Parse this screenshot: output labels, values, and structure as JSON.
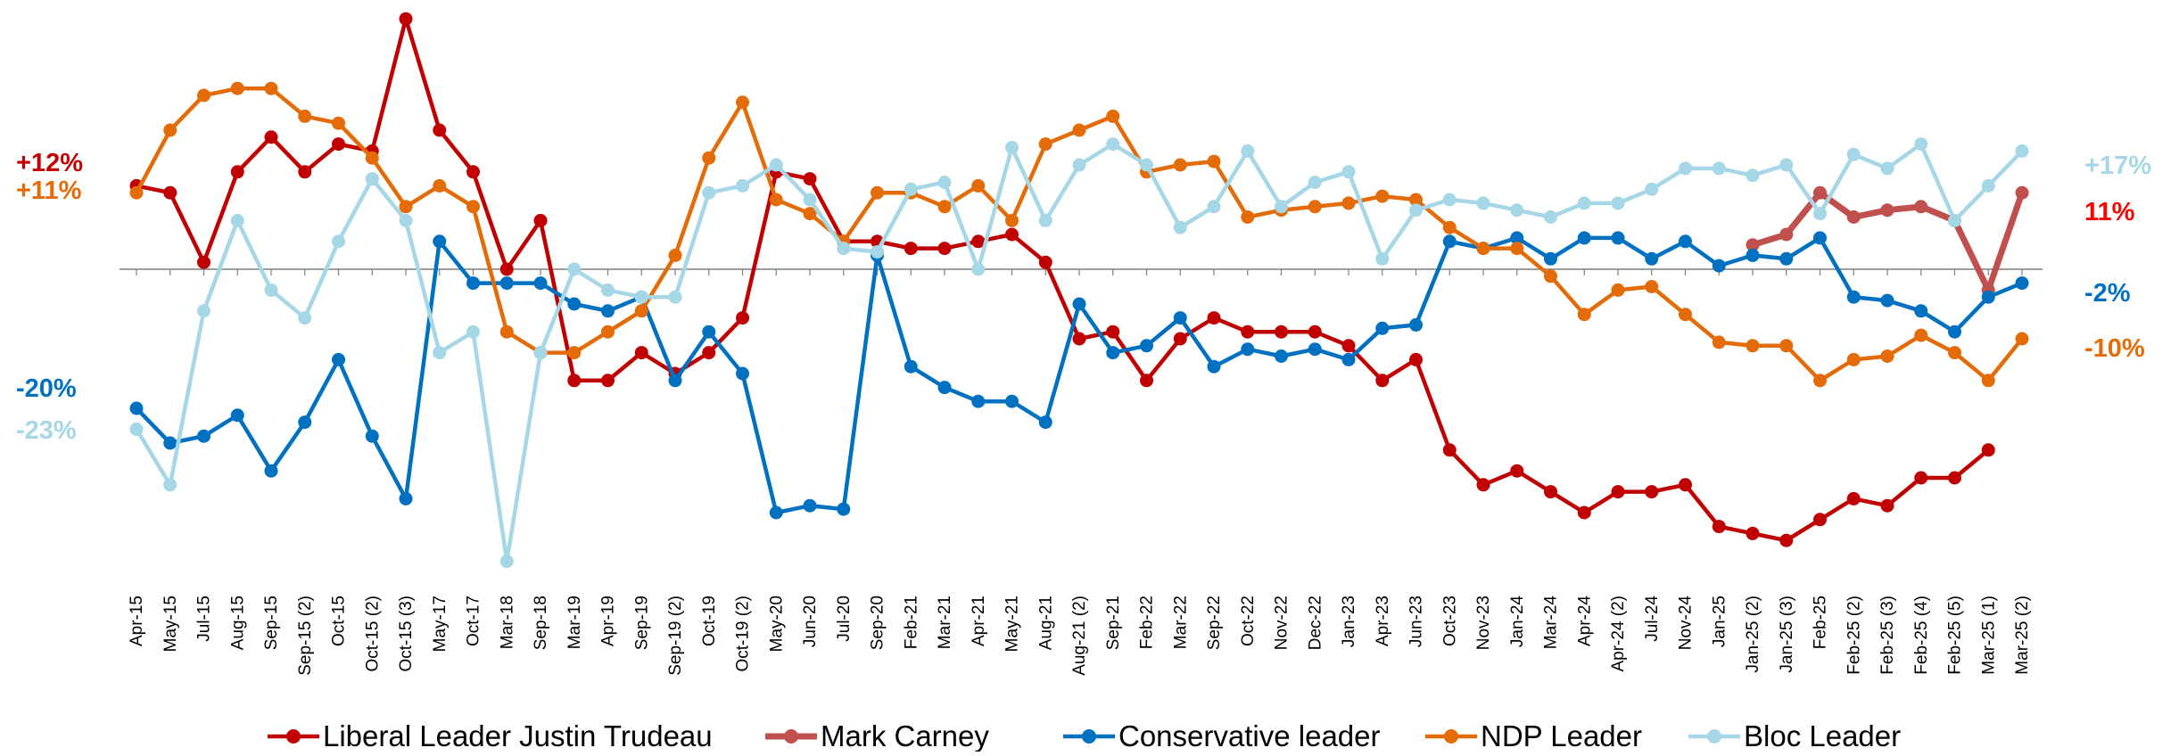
{
  "chart_data": {
    "type": "line",
    "title": "",
    "xlabel": "",
    "ylabel": "",
    "ylim": [
      -40,
      30
    ],
    "grid": false,
    "legend_position": "bottom",
    "categories": [
      "Apr-15",
      "May-15",
      "Jul-15",
      "Aug-15",
      "Sep-15",
      "Sep-15 (2)",
      "Oct-15",
      "Oct-15 (2)",
      "Oct-15 (3)",
      "May-17",
      "Oct-17",
      "Mar-18",
      "Sep-18",
      "Mar-19",
      "Apr-19",
      "Sep-19",
      "Sep-19 (2)",
      "Oct-19",
      "Oct-19 (2)",
      "May-20",
      "Jun-20",
      "Jul-20",
      "Sep-20",
      "Feb-21",
      "Mar-21",
      "Apr-21",
      "May-21",
      "Aug-21",
      "Aug-21 (2)",
      "Sep-21",
      "Feb-22",
      "Mar-22",
      "Sep-22",
      "Oct-22",
      "Nov-22",
      "Dec-22",
      "Jan-23",
      "Apr-23",
      "Jun-23",
      "Oct-23",
      "Nov-23",
      "Jan-24",
      "Mar-24",
      "Apr-24",
      "Apr-24 (2)",
      "Jul-24",
      "Nov-24",
      "Jan-25",
      "Jan-25 (2)",
      "Jan-25 (3)",
      "Feb-25",
      "Feb-25 (2)",
      "Feb-25 (3)",
      "Feb-25 (4)",
      "Feb-25 (5)",
      "Mar-25 (1)",
      "Mar-25 (2)"
    ],
    "series": [
      {
        "name": "Liberal Leader Justin Trudeau",
        "color": "#c00000",
        "values": [
          12,
          11,
          1,
          14,
          19,
          14,
          18,
          17,
          36,
          20,
          14,
          0,
          7,
          -16,
          -16,
          -12,
          -15,
          -12,
          -7,
          14,
          13,
          4,
          4,
          3,
          3,
          4,
          5,
          1,
          -10,
          -9,
          -16,
          -10,
          -7,
          -9,
          -9,
          -9,
          -11,
          -16,
          -13,
          -26,
          -31,
          -29,
          -32,
          -35,
          -32,
          -32,
          -31,
          -37,
          -38,
          -39,
          -36,
          -33,
          -34,
          -30,
          -30,
          -26,
          null
        ]
      },
      {
        "name": "Mark Carney",
        "color": "#c0504d",
        "values": [
          null,
          null,
          null,
          null,
          null,
          null,
          null,
          null,
          null,
          null,
          null,
          null,
          null,
          null,
          null,
          null,
          null,
          null,
          null,
          null,
          null,
          null,
          null,
          null,
          null,
          null,
          null,
          null,
          null,
          null,
          null,
          null,
          null,
          null,
          null,
          null,
          null,
          null,
          null,
          null,
          null,
          null,
          null,
          null,
          null,
          null,
          null,
          null,
          3.5,
          5,
          11,
          7.5,
          8.5,
          9,
          7,
          -3,
          11
        ]
      },
      {
        "name": "Conservative leader",
        "color": "#0070c0",
        "values": [
          -20,
          -25,
          -24,
          -21,
          -29,
          -22,
          -13,
          -24,
          -33,
          4,
          -2,
          -2,
          -2,
          -5,
          -6,
          -4,
          -16,
          -9,
          -15,
          -35,
          -34,
          -34.5,
          2,
          -14,
          -17,
          -19,
          -19,
          -22,
          -5,
          -12,
          -11,
          -7,
          -14,
          -11.5,
          -12.5,
          -11.5,
          -13,
          -8.5,
          -8,
          4,
          3,
          4.5,
          1.5,
          4.5,
          4.5,
          1.5,
          4,
          0.5,
          2,
          1.5,
          4.5,
          -4,
          -4.5,
          -6,
          -9,
          -4,
          -2
        ]
      },
      {
        "name": "NDP Leader",
        "color": "#e36c09",
        "values": [
          11,
          20,
          25,
          26,
          26,
          22,
          21,
          16,
          9,
          12,
          9,
          -9,
          -12,
          -12,
          -9,
          -6,
          2,
          16,
          24,
          10,
          8,
          4,
          11,
          11,
          9,
          12,
          7,
          18,
          20,
          22,
          14,
          15,
          15.5,
          7.5,
          8.5,
          9,
          9.5,
          10.5,
          10,
          6,
          3,
          3,
          -1,
          -6.5,
          -3,
          -2.5,
          -6.5,
          -10.5,
          -11,
          -11,
          -16,
          -13,
          -12.5,
          -9.5,
          -12,
          -16,
          -10
        ]
      },
      {
        "name": "Bloc Leader",
        "color": "#a6d7e6",
        "values": [
          -23,
          -31,
          -6,
          7,
          -3,
          -7,
          4,
          13,
          7,
          -12,
          -9,
          -42,
          -12,
          0,
          -3,
          -4,
          -4,
          11,
          12,
          15,
          10,
          3,
          2.5,
          11.5,
          12.5,
          0,
          17.5,
          7,
          15,
          18,
          15,
          6,
          9,
          17,
          9,
          12.5,
          14,
          1.5,
          8.5,
          10,
          9.5,
          8.5,
          7.5,
          9.5,
          9.5,
          11.5,
          14.5,
          14.5,
          13.5,
          15,
          8,
          16.5,
          14.5,
          18,
          7,
          12,
          17
        ]
      }
    ],
    "annotations": [
      {
        "text": "+12%",
        "series": "Liberal Leader Justin Trudeau",
        "side": "left",
        "color": "#c00000"
      },
      {
        "text": "+11%",
        "series": "NDP Leader",
        "side": "left",
        "color": "#e36c09"
      },
      {
        "text": "-20%",
        "series": "Conservative leader",
        "side": "left",
        "color": "#0070c0"
      },
      {
        "text": "-23%",
        "series": "Bloc Leader",
        "side": "left",
        "color": "#a6d7e6"
      },
      {
        "text": "+17%",
        "series": "Bloc Leader",
        "side": "right",
        "color": "#a6d7e6"
      },
      {
        "text": "11%",
        "series": "Mark Carney",
        "side": "right",
        "color": "#ff0000"
      },
      {
        "text": "-2%",
        "series": "Conservative leader",
        "side": "right",
        "color": "#0070c0"
      },
      {
        "text": "-10%",
        "series": "NDP Leader",
        "side": "right",
        "color": "#e36c09"
      }
    ]
  }
}
